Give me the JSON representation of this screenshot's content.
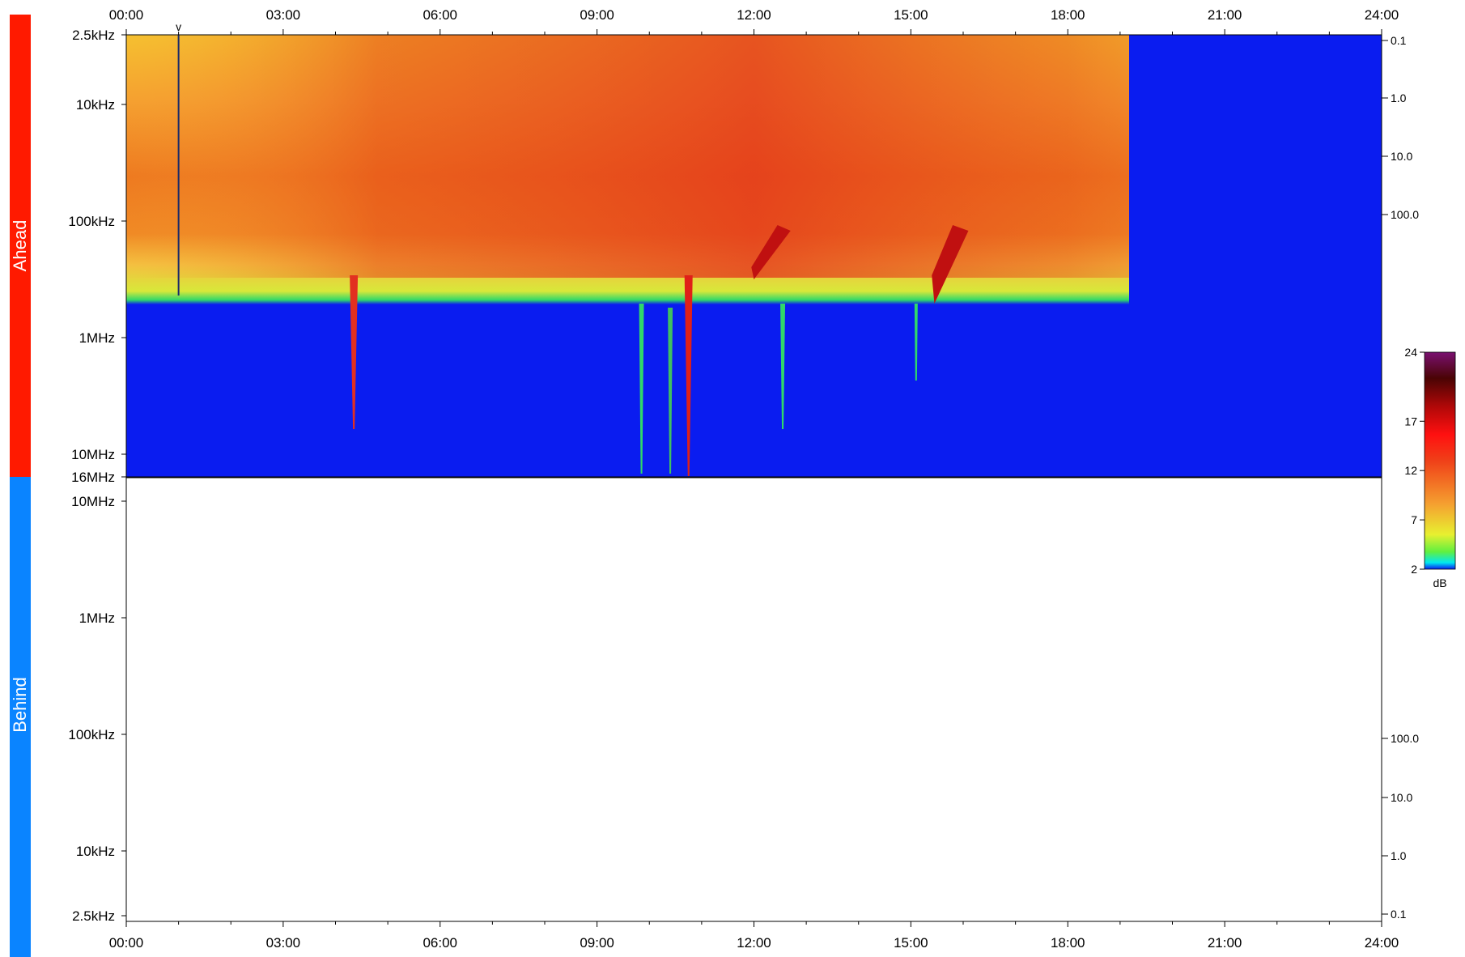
{
  "chart_data": {
    "type": "heatmap",
    "description_panels": [
      "Ahead",
      "Behind"
    ],
    "time_axis": {
      "range_hours": [
        0,
        24
      ],
      "tick_labels": [
        "00:00",
        "03:00",
        "06:00",
        "09:00",
        "12:00",
        "15:00",
        "18:00",
        "21:00",
        "24:00"
      ]
    },
    "panels": [
      {
        "name": "Ahead",
        "color": "#ff1a00",
        "freq_tick_labels": [
          "2.5kHz",
          "10kHz",
          "100kHz",
          "1MHz",
          "10MHz",
          "16MHz"
        ],
        "right_tick_labels": [
          "0.1",
          "1.0",
          "10.0",
          "100.0"
        ],
        "has_data": true,
        "data_gap_start_hour": 19.2,
        "low_freq_edge_mhz_approx": 0.55,
        "bursts": [
          {
            "start_hour": 4.3,
            "end_hour": 4.4,
            "min_freq": "30kHz-class",
            "max_freq_mhz": 3.5
          },
          {
            "start_hour": 9.8,
            "end_hour": 9.9,
            "max_freq_mhz": 10
          },
          {
            "start_hour": 10.35,
            "end_hour": 10.45,
            "max_freq_mhz": 16
          },
          {
            "start_hour": 10.7,
            "end_hour": 10.85,
            "max_freq_mhz": 16
          },
          {
            "start_hour": 12.0,
            "end_hour": 12.6,
            "max_freq_mhz": 5
          },
          {
            "start_hour": 15.4,
            "end_hour": 16.0,
            "max_freq_mhz": 2.5
          }
        ],
        "marker": {
          "label": "v",
          "hour": 1.0
        }
      },
      {
        "name": "Behind",
        "color": "#0a84ff",
        "freq_tick_labels": [
          "10MHz",
          "1MHz",
          "100kHz",
          "10kHz",
          "2.5kHz"
        ],
        "right_tick_labels": [
          "100.0",
          "10.0",
          "1.0",
          "0.1"
        ],
        "has_data": false
      }
    ],
    "colorbar": {
      "unit": "dB",
      "tick_labels": [
        "24",
        "17",
        "12",
        "7",
        "2"
      ],
      "range": [
        2,
        24
      ]
    }
  }
}
